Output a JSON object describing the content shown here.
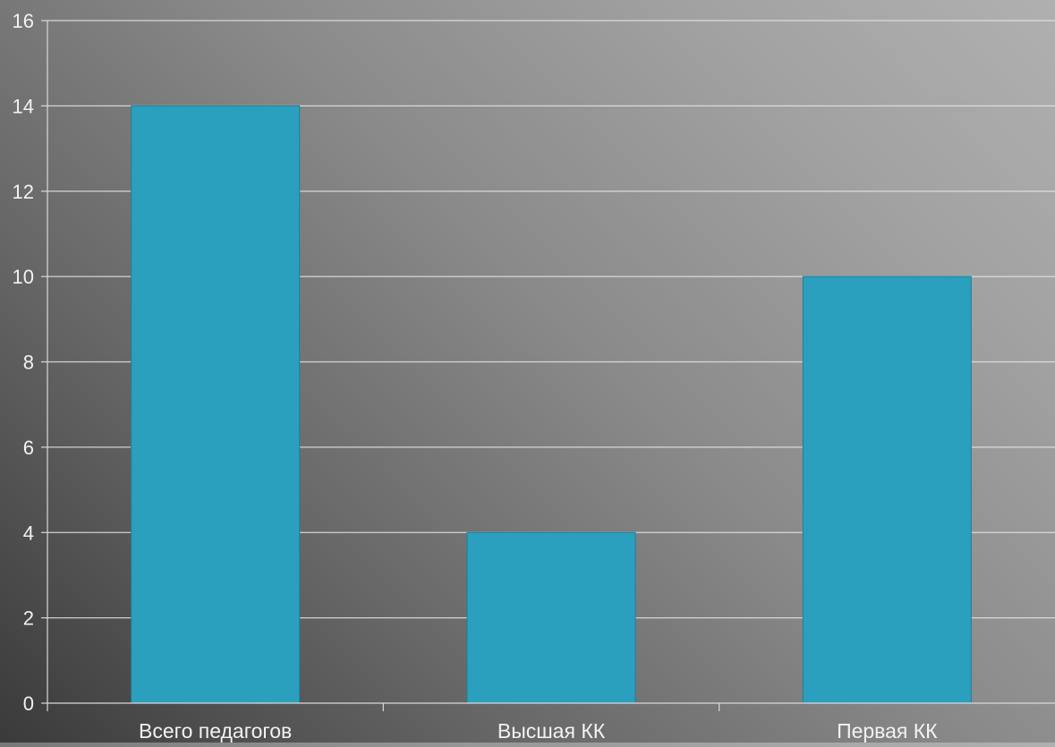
{
  "chart_data": {
    "type": "bar",
    "categories": [
      "Всего педагогов",
      "Высшая КК",
      "Первая КК"
    ],
    "values": [
      14,
      4,
      10
    ],
    "ylim": [
      0,
      16
    ],
    "yticks": [
      0,
      2,
      4,
      6,
      8,
      10,
      12,
      14,
      16
    ],
    "grid": true,
    "legend": "none",
    "title": "",
    "xlabel": "",
    "ylabel": "",
    "colors": {
      "bar": "#2aa0be",
      "bar_edge": "#1f7f98",
      "gridline": "#e6e6e6",
      "axis": "#d9d9d9",
      "text": "#f2f2f2"
    }
  }
}
